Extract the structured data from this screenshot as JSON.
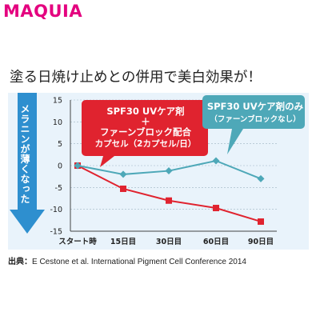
{
  "brand": {
    "logo_text": "MAQUIA",
    "logo_color": "#e4007f"
  },
  "headline": "塗る日焼け止めとの併用で美白効果が！",
  "source": {
    "label": "出典：",
    "text": "E Cestone et al. International Pigment Cell Conference 2014"
  },
  "side_arrow": {
    "label": "メラニンが薄くなった",
    "color": "#2e8fcf"
  },
  "colors": {
    "red_series": "#e0232f",
    "teal_series": "#4ea8b8",
    "panel_bg": "#e9f3fb"
  },
  "chart_data": {
    "type": "line",
    "categories": [
      "スタート時",
      "15日目",
      "30日目",
      "60日目",
      "90日目"
    ],
    "ylim": [
      -15,
      15
    ],
    "yticks": [
      15,
      10,
      5,
      0,
      -5,
      -10,
      -15
    ],
    "grid": true,
    "series": [
      {
        "name": "SPF30 UVケア剤＋ファーンブロック配合カプセル（2カプセル/日）",
        "color": "#e0232f",
        "marker": "square",
        "values": [
          0,
          -5.3,
          -8,
          -9.7,
          -12.8
        ]
      },
      {
        "name": "SPF30 UVケア剤のみ（ファーンブロックなし）",
        "color": "#4ea8b8",
        "marker": "diamond",
        "values": [
          0,
          -2,
          -1.2,
          1.1,
          -3
        ]
      }
    ],
    "callouts": [
      {
        "lines": [
          "SPF30 UVケア剤",
          "＋",
          "ファーンブロック配合",
          "カプセル（2カプセル/日）"
        ],
        "color": "#e0232f"
      },
      {
        "lines": [
          "SPF30 UVケア剤のみ",
          "（ファーンブロックなし）"
        ],
        "color": "#4ea8b8"
      }
    ]
  }
}
